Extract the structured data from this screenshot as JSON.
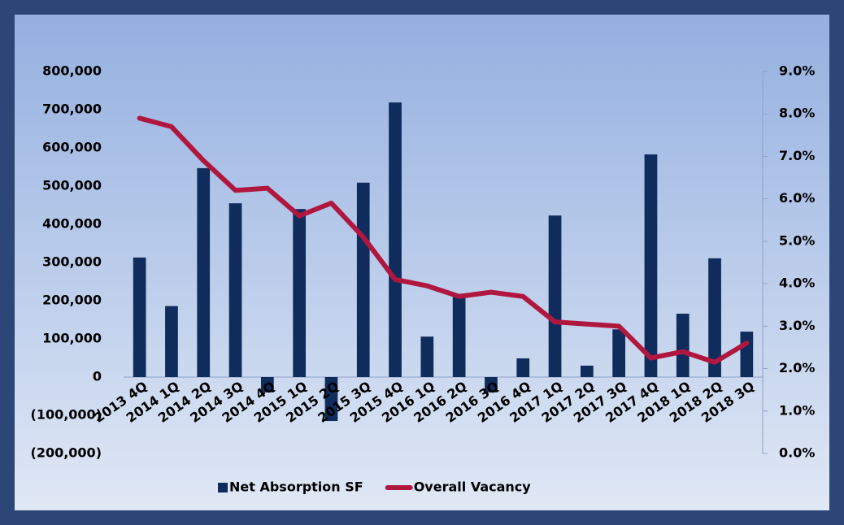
{
  "chart_data": {
    "type": "bar-line",
    "categories": [
      "2013 4Q",
      "2014 1Q",
      "2014 2Q",
      "2014 3Q",
      "2014 4Q",
      "2015 1Q",
      "2015 2Q",
      "2015 3Q",
      "2015 4Q",
      "2016 1Q",
      "2016 2Q",
      "2016 3Q",
      "2016 4Q",
      "2017 1Q",
      "2017 2Q",
      "2017 3Q",
      "2017 4Q",
      "2018 1Q",
      "2018 2Q",
      "2018 3Q"
    ],
    "series": [
      {
        "name": "Net Absorption SF",
        "type": "bar",
        "color": "#0f2c5c",
        "values": [
          313000,
          186000,
          547000,
          455000,
          -40000,
          440000,
          -115000,
          509000,
          719000,
          106000,
          215000,
          -40000,
          49000,
          423000,
          30000,
          125000,
          583000,
          166000,
          311000,
          119000
        ]
      },
      {
        "name": "Overall Vacancy",
        "type": "line",
        "axis": "y2",
        "color": "#b0173f",
        "values": [
          7.9,
          7.7,
          6.9,
          6.2,
          6.25,
          5.6,
          5.9,
          5.1,
          4.1,
          3.95,
          3.7,
          3.8,
          3.7,
          3.1,
          3.05,
          3.0,
          2.25,
          2.4,
          2.15,
          2.6
        ]
      }
    ],
    "ylim": [
      -200000,
      800000
    ],
    "yticks": [
      {
        "value": -200000,
        "label": "(200,000)"
      },
      {
        "value": -100000,
        "label": "(100,000)"
      },
      0,
      {
        "value": 100000,
        "label": "100,000"
      },
      {
        "value": 200000,
        "label": "200,000"
      },
      {
        "value": 300000,
        "label": "300,000"
      },
      {
        "value": 400000,
        "label": "400,000"
      },
      {
        "value": 500000,
        "label": "500,000"
      },
      {
        "value": 600000,
        "label": "600,000"
      },
      {
        "value": 700000,
        "label": "700,000"
      },
      {
        "value": 800000,
        "label": "800,000"
      }
    ],
    "negative_tick_color": "#ff0000",
    "y2lim": [
      0,
      9
    ],
    "y2ticks": [
      {
        "value": 0,
        "label": "0.0%"
      },
      {
        "value": 1,
        "label": "1.0%"
      },
      {
        "value": 2,
        "label": "2.0%"
      },
      {
        "value": 3,
        "label": "3.0%"
      },
      {
        "value": 4,
        "label": "4.0%"
      },
      {
        "value": 5,
        "label": "5.0%"
      },
      {
        "value": 6,
        "label": "6.0%"
      },
      {
        "value": 7,
        "label": "7.0%"
      },
      {
        "value": 8,
        "label": "8.0%"
      },
      {
        "value": 9,
        "label": "9.0%"
      }
    ],
    "legend": "bottom"
  }
}
